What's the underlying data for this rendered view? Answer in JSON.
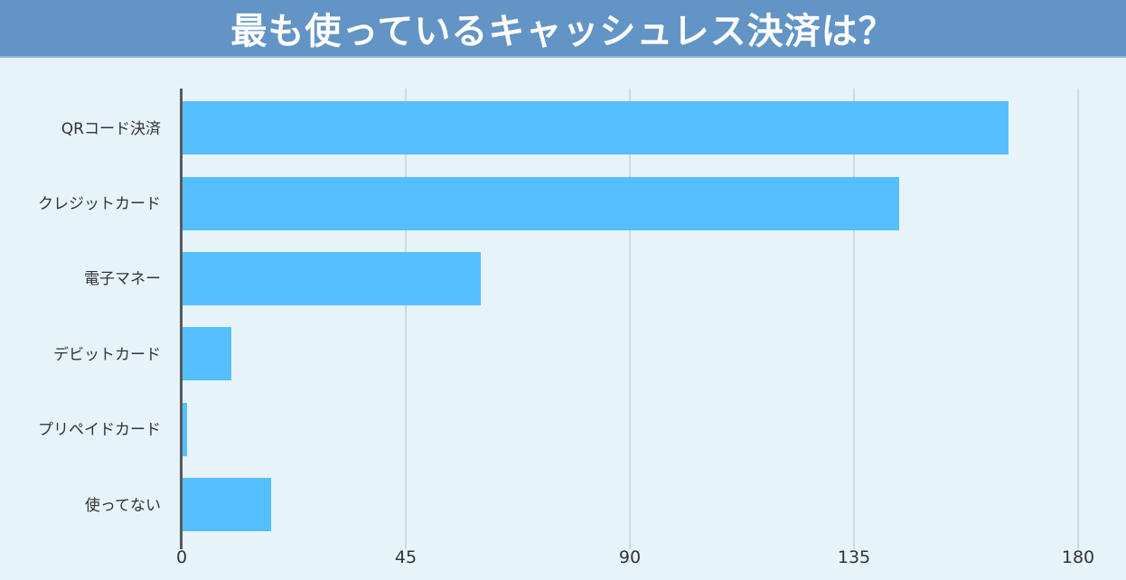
{
  "header": {
    "title": "最も使っているキャッシュレス決済は？"
  },
  "colors": {
    "header_bg": "#6394c6",
    "bar": "#55bffd",
    "background": "#e6f3f9"
  },
  "chart_data": {
    "type": "bar",
    "orientation": "horizontal",
    "title": "最も使っているキャッシュレス決済は？",
    "xlabel": "",
    "ylabel": "",
    "categories": [
      "QRコード決済",
      "クレジットカード",
      "電子マネー",
      "デビットカード",
      "プリペイドカード",
      "使ってない"
    ],
    "values": [
      166,
      144,
      60,
      10,
      1,
      18
    ],
    "xlim": [
      0,
      180
    ],
    "xticks": [
      "0",
      "45",
      "90",
      "135",
      "180"
    ],
    "grid": true,
    "legend": null
  }
}
